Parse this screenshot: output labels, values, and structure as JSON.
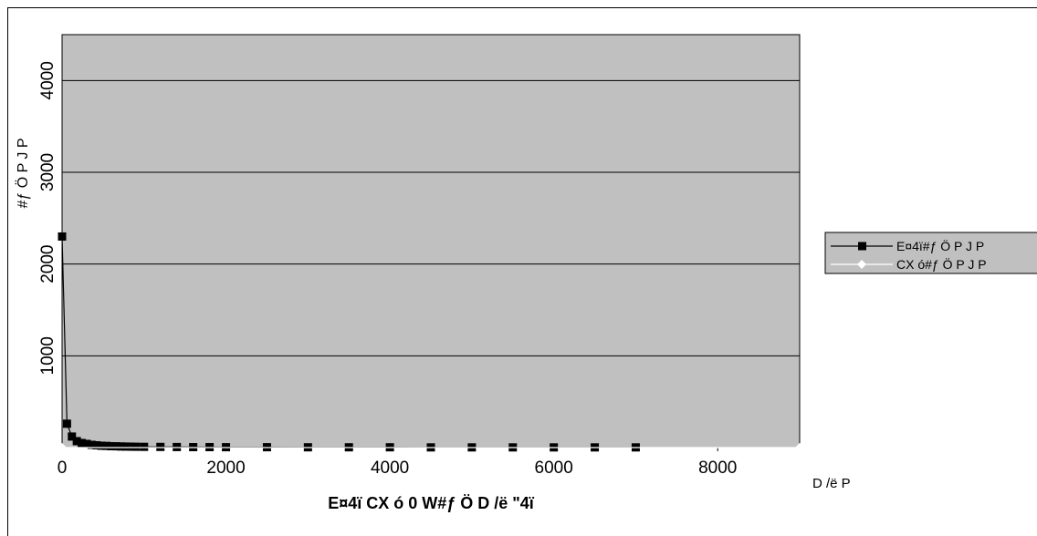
{
  "chart_data": {
    "type": "line",
    "title": "",
    "xlabel": "E¤4ï CX ó 0 W#ƒ Ö D /ë \"4ï",
    "ylabel": "#ƒ Ö P J P",
    "x_unit_label": "D /ë P",
    "xlim": [
      0,
      9000
    ],
    "ylim": [
      0,
      4500
    ],
    "x_ticks": [
      "0",
      "2000",
      "4000",
      "6000",
      "8000"
    ],
    "y_ticks": [
      "1000",
      "2000",
      "3000",
      "4000"
    ],
    "grid": true,
    "legend_position": "right",
    "plot_background": "#c0c0c0",
    "series": [
      {
        "name": "E¤4ï#ƒ Ö P J P",
        "color": "#000000",
        "marker": "square",
        "x": [
          0,
          60,
          120,
          180,
          240,
          300,
          360,
          420,
          480,
          540,
          600,
          660,
          720,
          780,
          840,
          900,
          1000,
          1200,
          1400,
          1600,
          1800,
          2000,
          2500,
          3000,
          3500,
          4000,
          4500,
          5000,
          5500,
          6000,
          6500,
          7000
        ],
        "y": [
          2300,
          260,
          120,
          70,
          50,
          40,
          30,
          25,
          20,
          18,
          15,
          14,
          12,
          11,
          10,
          9,
          8,
          7,
          6,
          5,
          5,
          4,
          4,
          3,
          3,
          3,
          2,
          2,
          2,
          2,
          2,
          2
        ]
      },
      {
        "name": "CX ó#ƒ Ö P J P",
        "color": "#ffffff",
        "marker": "diamond",
        "x": [
          0,
          9000
        ],
        "y": [
          0,
          0
        ]
      }
    ]
  }
}
